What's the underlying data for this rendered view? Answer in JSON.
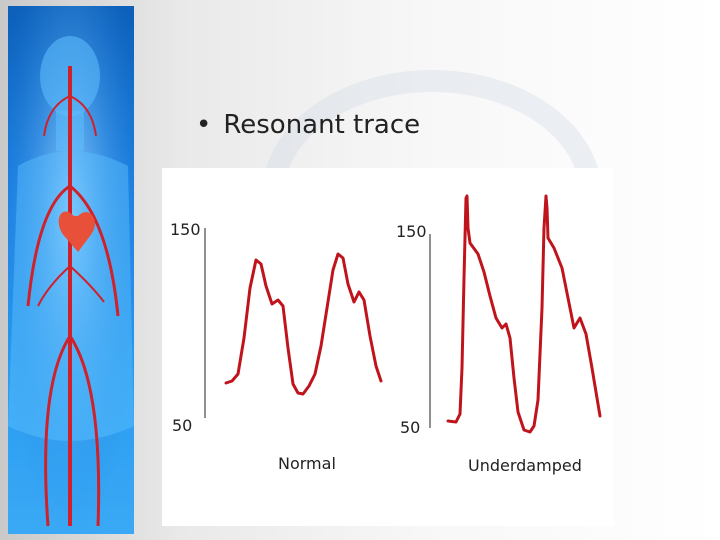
{
  "slide": {
    "bullet_text": "Resonant trace",
    "bullet_symbol": "•"
  },
  "diagram": {
    "trace_color": "#c0141c",
    "panels": [
      {
        "y_top_label": "150",
        "y_bottom_label": "50",
        "caption": "Normal"
      },
      {
        "y_top_label": "150",
        "y_bottom_label": "50",
        "caption": "Underdamped"
      }
    ]
  }
}
